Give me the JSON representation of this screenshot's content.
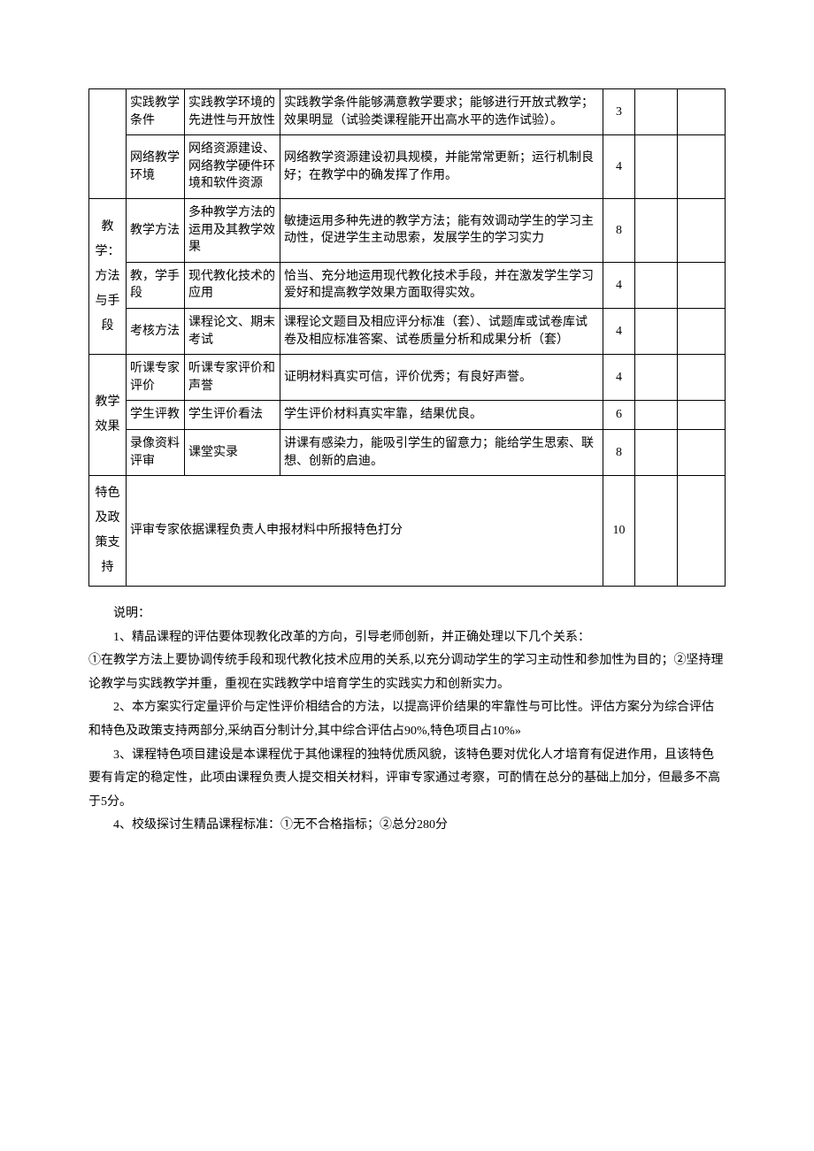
{
  "table": {
    "rows": [
      {
        "category": "",
        "cat_rowspan": 2,
        "sub": "实践教学条件",
        "point": "实践教学环境的先进性与开放性",
        "desc": "实践教学条件能够满意教学要求；能够进行开放式教学；效果明显（试验类课程能开出高水平的选作试验）。",
        "score": "3"
      },
      {
        "sub": "网络教学环境",
        "point": "网络资源建设、网络教学硬件环境和软件资源",
        "desc": "网络教学资源建设初具规模，并能常常更新；运行机制良好；在教学中的确发挥了作用。",
        "score": "4"
      },
      {
        "category": "教学：方法与手段",
        "cat_rowspan": 3,
        "sub": "教学方法",
        "point": "多种教学方法的运用及其教学效果",
        "desc": "敏捷运用多种先进的教学方法；能有效调动学生的学习主动性，促进学生主动思索，发展学生的学习实力",
        "score": "8"
      },
      {
        "sub": "教，学手段",
        "point": "现代教化技术的应用",
        "desc": "恰当、充分地运用现代教化技术手段，并在激发学生学习爱好和提高教学效果方面取得实效。",
        "score": "4"
      },
      {
        "sub": "考核方法",
        "point": "课程论文、期末考试",
        "desc": "课程论文题目及相应评分标准（套）、试题库或试卷库试卷及相应标准答案、试卷质量分析和成果分析（套）",
        "score": "4"
      },
      {
        "category": "教学效果",
        "cat_rowspan": 3,
        "sub": "听课专家评价",
        "point": "听课专家评价和声誉",
        "desc": "证明材料真实可信，评价优秀；有良好声誉。",
        "score": "4"
      },
      {
        "sub": "学生评教",
        "point": "学生评价看法",
        "desc": "学生评价材料真实牢靠，结果优良。",
        "score": "6"
      },
      {
        "sub": "录像资料评审",
        "point": "课堂实录",
        "desc": "讲课有感染力，能吸引学生的留意力；能给学生思索、联想、创新的启迪。",
        "score": "8"
      },
      {
        "category": "特色及政策支持",
        "cat_rowspan": 1,
        "full": true,
        "desc": "评审专家依据课程负责人申报材料中所报特色打分",
        "score": "10"
      }
    ]
  },
  "notes": {
    "heading": "说明：",
    "p1": "1、精品课程的评估要体现教化改革的方向，引导老师创新，并正确处理以下几个关系：",
    "p2": "①在教学方法上要协调传统手段和现代教化技术应用的关系,以充分调动学生的学习主动性和参加性为目的；②坚持理论教学与实践教学并重，重视在实践教学中培育学生的实践实力和创新实力。",
    "p3": "2、本方案实行定量评价与定性评价相结合的方法，以提高评价结果的牢靠性与可比性。评估方案分为综合评估和特色及政策支持两部分,采纳百分制计分,其中综合评估占90%,特色项目占10%»",
    "p4": "3、课程特色项目建设是本课程优于其他课程的独特优质风貌，该特色要对优化人才培育有促进作用，且该特色要有肯定的稳定性，此项由课程负责人提交相关材料，评审专家通过考察，可酌情在总分的基础上加分，但最多不高于5分。",
    "p5": "4、校级探讨生精品课程标准：①无不合格指标；②总分280分"
  }
}
